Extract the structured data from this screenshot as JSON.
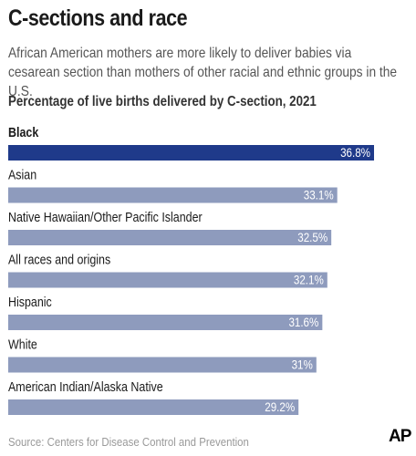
{
  "title": "C-sections and race",
  "subtitle": "African American mothers are more likely to deliver babies via cesarean section than mothers of other racial and ethnic groups in the U.S.",
  "source": "Source: Centers for Disease Control and Prevention",
  "logo": "AP",
  "colors": {
    "highlight": "#1f3a8a",
    "bar": "#8e9bbd"
  },
  "chart_data": {
    "type": "bar",
    "orientation": "horizontal",
    "title": "Percentage of live births delivered by C-section, 2021",
    "xlim": [
      0,
      36.8
    ],
    "categories": [
      "Black",
      "Asian",
      "Native Hawaiian/Other Pacific Islander",
      "All races and origins",
      "Hispanic",
      "White",
      "American Indian/Alaska Native"
    ],
    "values": [
      36.8,
      33.1,
      32.5,
      32.1,
      31.6,
      31,
      29.2
    ],
    "value_labels": [
      "36.8%",
      "33.1%",
      "32.5%",
      "32.1%",
      "31.6%",
      "31%",
      "29.2%"
    ],
    "highlighted": [
      "Black"
    ]
  }
}
